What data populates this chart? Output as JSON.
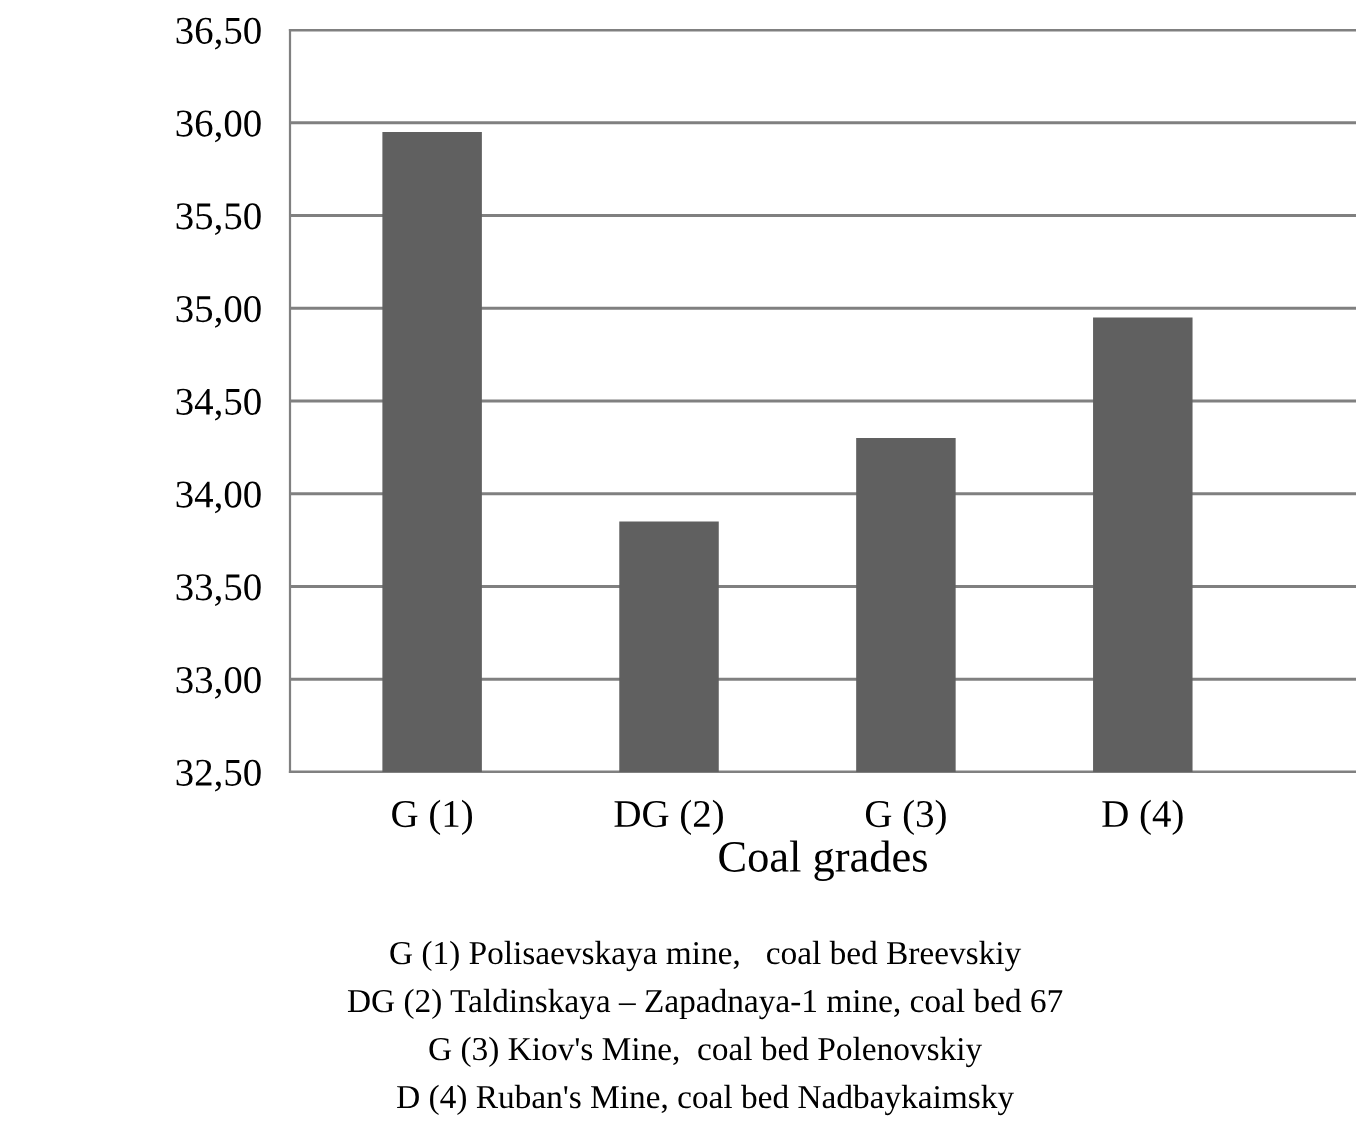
{
  "chart_data": {
    "type": "bar",
    "xlabel": "Coal grades",
    "categories": [
      "G (1)",
      "DG (2)",
      "G (3)",
      "D (4)"
    ],
    "values": [
      35.95,
      33.85,
      34.3,
      34.95
    ],
    "color": "#606060",
    "ylim": [
      32.5,
      36.5
    ],
    "yticks": [
      {
        "value": 32.5,
        "label": "32,50"
      },
      {
        "value": 33.0,
        "label": "33,00"
      },
      {
        "value": 33.5,
        "label": "33,50"
      },
      {
        "value": 34.0,
        "label": "34,00"
      },
      {
        "value": 34.5,
        "label": "34,50"
      },
      {
        "value": 35.0,
        "label": "35,00"
      },
      {
        "value": 35.5,
        "label": "35,50"
      },
      {
        "value": 36.0,
        "label": "36,00"
      },
      {
        "value": 36.5,
        "label": "36,50"
      }
    ],
    "grid": "y",
    "annotations": [
      "G (1) Polisaevskaya mine,   coal bed Breevskiy",
      "DG (2) Taldinskaya – Zapadnaya-1 mine, coal bed 67",
      "G (3) Kiov's Mine,  coal bed Polenovskiy",
      "D (4) Ruban's Mine, coal bed Nadbaykaimsky"
    ]
  }
}
